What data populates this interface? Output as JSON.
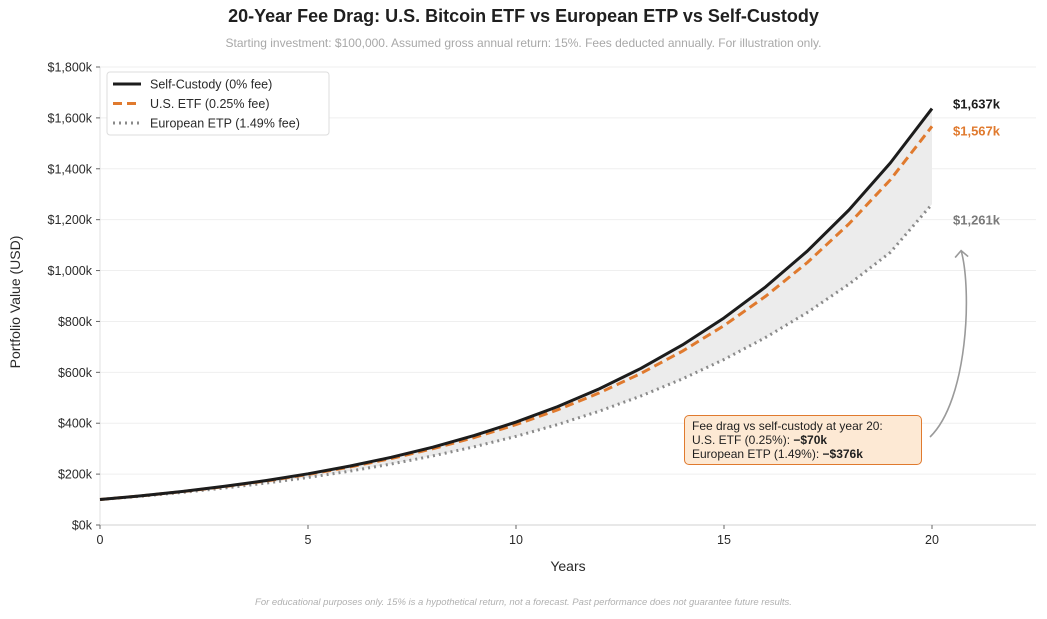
{
  "chart_data": {
    "type": "line",
    "title": "20-Year Fee Drag: U.S. Bitcoin ETF vs European ETP vs Self-Custody",
    "subtitle": "Starting investment: $100,000. Assumed gross annual return: 15%. Fees deducted annually. For illustration only.",
    "xlabel": "Years",
    "ylabel": "Portfolio Value (USD)",
    "xlim": [
      0,
      22.5
    ],
    "ylim": [
      0,
      1800
    ],
    "x_ticks": [
      0,
      5,
      10,
      15,
      20
    ],
    "x_tick_labels": [
      "0",
      "5",
      "10",
      "15",
      "20"
    ],
    "y_ticks": [
      0,
      200,
      400,
      600,
      800,
      1000,
      1200,
      1400,
      1600,
      1800
    ],
    "y_tick_labels": [
      "$0k",
      "$200k",
      "$400k",
      "$600k",
      "$800k",
      "$1,000k",
      "$1,200k",
      "$1,400k",
      "$1,600k",
      "$1,800k"
    ],
    "grid": "horizontal",
    "legend_position": "top-left",
    "x": [
      0,
      1,
      2,
      3,
      4,
      5,
      6,
      7,
      8,
      9,
      10,
      11,
      12,
      13,
      14,
      15,
      16,
      17,
      18,
      19,
      20
    ],
    "series": [
      {
        "name": "Self-Custody (0% fee)",
        "color": "#1c1c1c",
        "style": "solid",
        "values": [
          100,
          115,
          132.3,
          152.1,
          174.9,
          201.1,
          231.3,
          266,
          305.9,
          351.8,
          404.6,
          465.2,
          535,
          615.3,
          707.6,
          813.7,
          935.8,
          1076.1,
          1237.5,
          1423.2,
          1636.7
        ]
      },
      {
        "name": "U.S. ETF (0.25% fee)",
        "color": "#e07a2e",
        "style": "dashed",
        "values": [
          100,
          114.7,
          131.6,
          150.9,
          173.1,
          198.6,
          227.8,
          261.3,
          299.8,
          343.9,
          394.5,
          452.5,
          519.1,
          595.5,
          683.1,
          783.6,
          898.9,
          1031.2,
          1182.9,
          1357,
          1566.8
        ]
      },
      {
        "name": "European ETP (1.49% fee)",
        "color": "#8a8a8a",
        "style": "dotted",
        "values": [
          100,
          113.3,
          128.4,
          145.5,
          164.8,
          186.7,
          211.5,
          239.7,
          271.5,
          307.6,
          348.5,
          394.8,
          447.3,
          506.8,
          574.2,
          650.5,
          737,
          834.9,
          945.9,
          1071.6,
          1261
        ]
      }
    ],
    "shaded_region": {
      "between": [
        "Self-Custody (0% fee)",
        "European ETP (1.49% fee)"
      ],
      "color": "#ececec"
    },
    "end_labels": [
      {
        "text": "$1,637k",
        "color": "#1c1c1c",
        "value": 1637
      },
      {
        "text": "$1,567k",
        "color": "#e07a2e",
        "value": 1567
      },
      {
        "text": "$1,261k",
        "color": "#7a7a7a",
        "value": 1261
      }
    ],
    "annotation": {
      "line1": "Fee drag vs self-custody at year 20:",
      "line2_prefix": "U.S. ETF (0.25%): ",
      "line2_value": "−$70k",
      "line3_prefix": "European ETP (1.49%): ",
      "line3_value": "−$376k",
      "arrow_target": {
        "x": 20.7,
        "y": 1110
      }
    },
    "footnote": "For educational purposes only. 15% is a hypothetical return, not a forecast. Past performance does not guarantee future results."
  }
}
